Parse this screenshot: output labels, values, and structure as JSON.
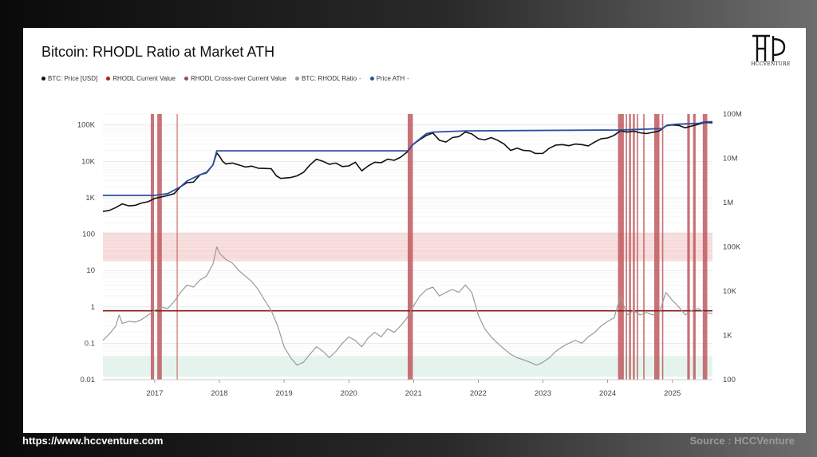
{
  "header": {
    "title": "Bitcoin: RHODL Ratio at Market ATH"
  },
  "brand": {
    "logo_text": "HCCVENTURE",
    "url": "https://www.hccventure.com",
    "source": "Source : HCCVenture"
  },
  "legend": [
    {
      "label": "BTC: Price [USD]",
      "color": "#111111",
      "suffix": ""
    },
    {
      "label": "RHODL Current Value",
      "color": "#b0201c",
      "suffix": ""
    },
    {
      "label": "RHODL Cross-over Current Value",
      "color": "#9c4a52",
      "suffix": ""
    },
    {
      "label": "BTC: RHODL Ratio",
      "color": "#9a9a9a",
      "suffix": "-"
    },
    {
      "label": "Price ATH",
      "color": "#2d4fa3",
      "suffix": "-"
    }
  ],
  "chart_data": {
    "type": "line",
    "x_range": [
      2016.2,
      2025.62
    ],
    "x_ticks": [
      "2017",
      "2018",
      "2019",
      "2020",
      "2021",
      "2022",
      "2023",
      "2024",
      "2025"
    ],
    "x_tick_values": [
      2017,
      2018,
      2019,
      2020,
      2021,
      2022,
      2023,
      2024,
      2025
    ],
    "y_left": {
      "scale": "log",
      "range": [
        0.01,
        200000
      ],
      "ticks": [
        "100K",
        "10K",
        "1K",
        "100",
        "10",
        "1",
        "0.1",
        "0.01"
      ],
      "tick_values": [
        100000,
        10000,
        1000,
        100,
        10,
        1,
        0.1,
        0.01
      ]
    },
    "y_right": {
      "scale": "log",
      "range": [
        100,
        100000000
      ],
      "ticks": [
        "100M",
        "10M",
        "1M",
        "100K",
        "10K",
        "1K",
        "100"
      ],
      "tick_values": [
        100000000,
        10000000,
        1000000,
        100000,
        10000,
        1000,
        100
      ]
    },
    "rhodl_current_value": 0.78,
    "bands": [
      {
        "name": "upper",
        "from": 18,
        "to": 110,
        "color": "#f6c9c9"
      },
      {
        "name": "lower",
        "from": 0.012,
        "to": 0.045,
        "color": "#d9efe4"
      }
    ],
    "ath_bars": [
      [
        2016.94,
        2016.99
      ],
      [
        2017.04,
        2017.11
      ],
      [
        2017.34,
        2017.35
      ],
      [
        2020.91,
        2020.99
      ],
      [
        2024.16,
        2024.25
      ],
      [
        2024.28,
        2024.3
      ],
      [
        2024.33,
        2024.36
      ],
      [
        2024.39,
        2024.42
      ],
      [
        2024.45,
        2024.47
      ],
      [
        2024.55,
        2024.57
      ],
      [
        2024.72,
        2024.8
      ],
      [
        2024.84,
        2024.86
      ],
      [
        2025.23,
        2025.27
      ],
      [
        2025.32,
        2025.36
      ],
      [
        2025.47,
        2025.54
      ]
    ],
    "series": [
      {
        "name": "BTC: Price [USD]",
        "axis": "left",
        "color": "#111111",
        "points": [
          [
            2016.2,
            420
          ],
          [
            2016.3,
            450
          ],
          [
            2016.4,
            540
          ],
          [
            2016.5,
            680
          ],
          [
            2016.6,
            600
          ],
          [
            2016.7,
            620
          ],
          [
            2016.8,
            720
          ],
          [
            2016.9,
            780
          ],
          [
            2017.0,
            960
          ],
          [
            2017.1,
            1050
          ],
          [
            2017.2,
            1150
          ],
          [
            2017.3,
            1300
          ],
          [
            2017.4,
            2000
          ],
          [
            2017.5,
            2600
          ],
          [
            2017.6,
            2700
          ],
          [
            2017.7,
            4300
          ],
          [
            2017.8,
            4800
          ],
          [
            2017.9,
            8000
          ],
          [
            2017.96,
            17000
          ],
          [
            2018.0,
            14000
          ],
          [
            2018.05,
            10000
          ],
          [
            2018.1,
            8500
          ],
          [
            2018.2,
            9000
          ],
          [
            2018.3,
            8000
          ],
          [
            2018.4,
            7000
          ],
          [
            2018.5,
            7400
          ],
          [
            2018.6,
            6500
          ],
          [
            2018.7,
            6400
          ],
          [
            2018.8,
            6300
          ],
          [
            2018.88,
            4000
          ],
          [
            2018.95,
            3400
          ],
          [
            2019.1,
            3600
          ],
          [
            2019.2,
            4000
          ],
          [
            2019.3,
            5000
          ],
          [
            2019.4,
            8000
          ],
          [
            2019.5,
            11500
          ],
          [
            2019.6,
            10000
          ],
          [
            2019.7,
            8300
          ],
          [
            2019.8,
            9000
          ],
          [
            2019.9,
            7200
          ],
          [
            2020.0,
            7500
          ],
          [
            2020.1,
            9500
          ],
          [
            2020.2,
            5500
          ],
          [
            2020.3,
            7500
          ],
          [
            2020.4,
            9500
          ],
          [
            2020.5,
            9200
          ],
          [
            2020.6,
            11500
          ],
          [
            2020.7,
            10700
          ],
          [
            2020.8,
            13000
          ],
          [
            2020.9,
            18000
          ],
          [
            2020.99,
            29000
          ],
          [
            2021.1,
            40000
          ],
          [
            2021.2,
            52000
          ],
          [
            2021.3,
            60000
          ],
          [
            2021.4,
            38000
          ],
          [
            2021.5,
            34000
          ],
          [
            2021.6,
            45000
          ],
          [
            2021.7,
            48000
          ],
          [
            2021.8,
            64000
          ],
          [
            2021.9,
            57000
          ],
          [
            2022.0,
            42000
          ],
          [
            2022.1,
            39000
          ],
          [
            2022.2,
            45000
          ],
          [
            2022.3,
            38000
          ],
          [
            2022.4,
            30000
          ],
          [
            2022.5,
            20000
          ],
          [
            2022.6,
            23000
          ],
          [
            2022.7,
            20000
          ],
          [
            2022.8,
            19500
          ],
          [
            2022.88,
            16500
          ],
          [
            2023.0,
            16600
          ],
          [
            2023.1,
            23000
          ],
          [
            2023.2,
            28000
          ],
          [
            2023.3,
            29000
          ],
          [
            2023.4,
            27000
          ],
          [
            2023.5,
            30000
          ],
          [
            2023.6,
            29000
          ],
          [
            2023.7,
            26500
          ],
          [
            2023.8,
            34000
          ],
          [
            2023.9,
            42000
          ],
          [
            2024.0,
            44000
          ],
          [
            2024.1,
            52000
          ],
          [
            2024.2,
            70000
          ],
          [
            2024.3,
            64000
          ],
          [
            2024.4,
            68000
          ],
          [
            2024.5,
            61000
          ],
          [
            2024.6,
            58000
          ],
          [
            2024.7,
            63000
          ],
          [
            2024.8,
            69000
          ],
          [
            2024.9,
            95000
          ],
          [
            2025.0,
            100000
          ],
          [
            2025.1,
            97000
          ],
          [
            2025.2,
            84000
          ],
          [
            2025.3,
            94000
          ],
          [
            2025.4,
            105000
          ],
          [
            2025.5,
            118000
          ],
          [
            2025.62,
            115000
          ]
        ]
      },
      {
        "name": "Price ATH",
        "axis": "left",
        "color": "#2d4fa3",
        "points": [
          [
            2016.2,
            1160
          ],
          [
            2017.0,
            1160
          ],
          [
            2017.2,
            1300
          ],
          [
            2017.4,
            2000
          ],
          [
            2017.5,
            2900
          ],
          [
            2017.7,
            4300
          ],
          [
            2017.8,
            5000
          ],
          [
            2017.9,
            8000
          ],
          [
            2017.96,
            19500
          ],
          [
            2020.91,
            19500
          ],
          [
            2020.99,
            29000
          ],
          [
            2021.1,
            42000
          ],
          [
            2021.2,
            58000
          ],
          [
            2021.3,
            64000
          ],
          [
            2021.8,
            69000
          ],
          [
            2024.2,
            73000
          ],
          [
            2024.85,
            80000
          ],
          [
            2024.92,
            99000
          ],
          [
            2025.05,
            105000
          ],
          [
            2025.4,
            111000
          ],
          [
            2025.5,
            122000
          ],
          [
            2025.62,
            124000
          ]
        ]
      },
      {
        "name": "BTC: RHODL Ratio",
        "axis": "left",
        "color": "#9a9a9a",
        "points": [
          [
            2016.2,
            0.12
          ],
          [
            2016.3,
            0.18
          ],
          [
            2016.4,
            0.3
          ],
          [
            2016.45,
            0.6
          ],
          [
            2016.5,
            0.35
          ],
          [
            2016.6,
            0.4
          ],
          [
            2016.7,
            0.38
          ],
          [
            2016.8,
            0.45
          ],
          [
            2016.9,
            0.6
          ],
          [
            2017.0,
            0.8
          ],
          [
            2017.1,
            1.0
          ],
          [
            2017.2,
            0.9
          ],
          [
            2017.3,
            1.4
          ],
          [
            2017.4,
            2.5
          ],
          [
            2017.5,
            4
          ],
          [
            2017.6,
            3.5
          ],
          [
            2017.7,
            5.5
          ],
          [
            2017.8,
            7
          ],
          [
            2017.9,
            15
          ],
          [
            2017.96,
            45
          ],
          [
            2018.0,
            30
          ],
          [
            2018.1,
            20
          ],
          [
            2018.2,
            16
          ],
          [
            2018.3,
            10
          ],
          [
            2018.4,
            7
          ],
          [
            2018.5,
            5
          ],
          [
            2018.6,
            3
          ],
          [
            2018.7,
            1.5
          ],
          [
            2018.8,
            0.8
          ],
          [
            2018.9,
            0.3
          ],
          [
            2019.0,
            0.08
          ],
          [
            2019.1,
            0.04
          ],
          [
            2019.2,
            0.025
          ],
          [
            2019.3,
            0.03
          ],
          [
            2019.4,
            0.05
          ],
          [
            2019.5,
            0.08
          ],
          [
            2019.6,
            0.06
          ],
          [
            2019.7,
            0.04
          ],
          [
            2019.8,
            0.06
          ],
          [
            2019.9,
            0.1
          ],
          [
            2020.0,
            0.15
          ],
          [
            2020.1,
            0.12
          ],
          [
            2020.2,
            0.08
          ],
          [
            2020.3,
            0.14
          ],
          [
            2020.4,
            0.2
          ],
          [
            2020.5,
            0.15
          ],
          [
            2020.6,
            0.25
          ],
          [
            2020.7,
            0.2
          ],
          [
            2020.8,
            0.3
          ],
          [
            2020.9,
            0.5
          ],
          [
            2020.99,
            1.0
          ],
          [
            2021.1,
            2.0
          ],
          [
            2021.2,
            3.0
          ],
          [
            2021.3,
            3.5
          ],
          [
            2021.4,
            2.0
          ],
          [
            2021.5,
            2.5
          ],
          [
            2021.6,
            3.0
          ],
          [
            2021.7,
            2.5
          ],
          [
            2021.8,
            4.0
          ],
          [
            2021.9,
            2.5
          ],
          [
            2022.0,
            0.6
          ],
          [
            2022.1,
            0.25
          ],
          [
            2022.2,
            0.15
          ],
          [
            2022.3,
            0.1
          ],
          [
            2022.4,
            0.07
          ],
          [
            2022.5,
            0.05
          ],
          [
            2022.6,
            0.04
          ],
          [
            2022.7,
            0.035
          ],
          [
            2022.8,
            0.03
          ],
          [
            2022.9,
            0.025
          ],
          [
            2023.0,
            0.03
          ],
          [
            2023.1,
            0.04
          ],
          [
            2023.2,
            0.06
          ],
          [
            2023.3,
            0.08
          ],
          [
            2023.4,
            0.1
          ],
          [
            2023.5,
            0.12
          ],
          [
            2023.6,
            0.1
          ],
          [
            2023.7,
            0.15
          ],
          [
            2023.8,
            0.2
          ],
          [
            2023.9,
            0.3
          ],
          [
            2024.0,
            0.4
          ],
          [
            2024.1,
            0.5
          ],
          [
            2024.2,
            2.0
          ],
          [
            2024.3,
            0.6
          ],
          [
            2024.4,
            0.8
          ],
          [
            2024.5,
            0.6
          ],
          [
            2024.6,
            0.7
          ],
          [
            2024.7,
            0.6
          ],
          [
            2024.8,
            0.7
          ],
          [
            2024.9,
            2.5
          ],
          [
            2025.0,
            1.5
          ],
          [
            2025.1,
            1.0
          ],
          [
            2025.2,
            0.6
          ],
          [
            2025.3,
            0.8
          ],
          [
            2025.4,
            0.9
          ],
          [
            2025.5,
            0.7
          ],
          [
            2025.62,
            0.65
          ]
        ]
      }
    ]
  }
}
